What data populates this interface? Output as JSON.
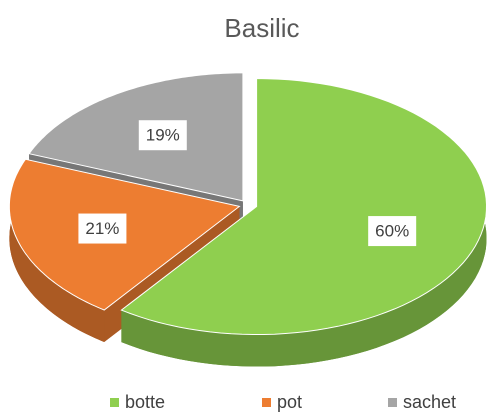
{
  "chart_data": {
    "type": "pie3d",
    "title": "Basilic",
    "categories": [
      "botte",
      "pot",
      "sachet"
    ],
    "values": [
      60,
      21,
      19
    ],
    "value_labels": [
      "60%",
      "21%",
      "19%"
    ],
    "colors": [
      "#8fcf4f",
      "#ed7d31",
      "#a5a5a5"
    ],
    "legend": "bottom"
  }
}
